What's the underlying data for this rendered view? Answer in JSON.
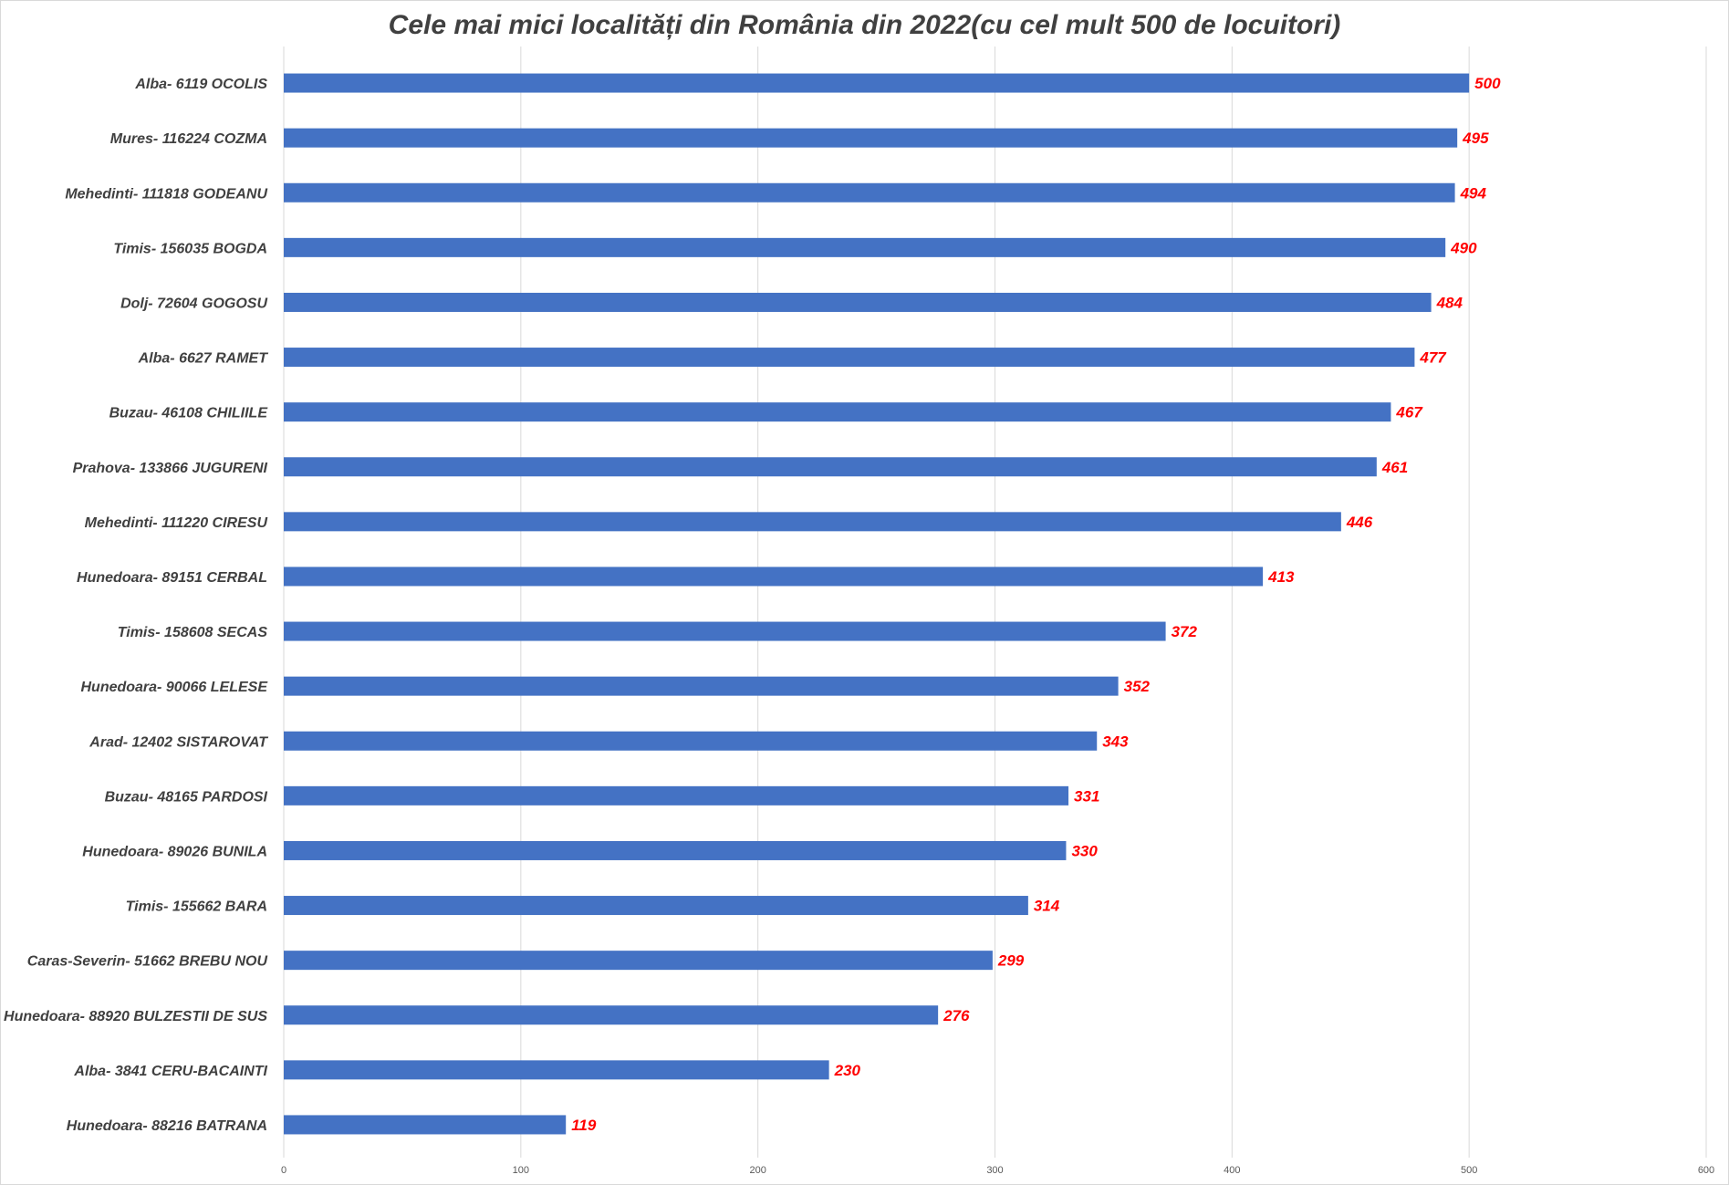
{
  "chart_data": {
    "type": "bar",
    "orientation": "horizontal",
    "title": "Cele mai mici localități din România din 2022(cu cel mult 500 de locuitori)",
    "xlabel": "",
    "ylabel": "",
    "xlim": [
      0,
      600
    ],
    "ticks": [
      "0",
      "100",
      "200",
      "300",
      "400",
      "500",
      "600"
    ],
    "grid": "vertical",
    "legend": "none",
    "bar_color": "#4472c4",
    "label_color": "#ff0000",
    "categories": [
      "Alba- 6119 OCOLIS",
      "Mures- 116224 COZMA",
      "Mehedinti- 111818 GODEANU",
      "Timis- 156035 BOGDA",
      "Dolj- 72604 GOGOSU",
      "Alba- 6627 RAMET",
      "Buzau- 46108 CHILIILE",
      "Prahova- 133866 JUGURENI",
      "Mehedinti- 111220 CIRESU",
      "Hunedoara- 89151 CERBAL",
      "Timis- 158608 SECAS",
      "Hunedoara- 90066 LELESE",
      "Arad- 12402 SISTAROVAT",
      "Buzau- 48165 PARDOSI",
      "Hunedoara- 89026 BUNILA",
      "Timis- 155662 BARA",
      "Caras-Severin- 51662 BREBU NOU",
      "Hunedoara- 88920 BULZESTII DE SUS",
      "Alba- 3841 CERU-BACAINTI",
      "Hunedoara- 88216 BATRANA"
    ],
    "values": [
      500,
      495,
      494,
      490,
      484,
      477,
      467,
      461,
      446,
      413,
      372,
      352,
      343,
      331,
      330,
      314,
      299,
      276,
      230,
      119
    ]
  }
}
